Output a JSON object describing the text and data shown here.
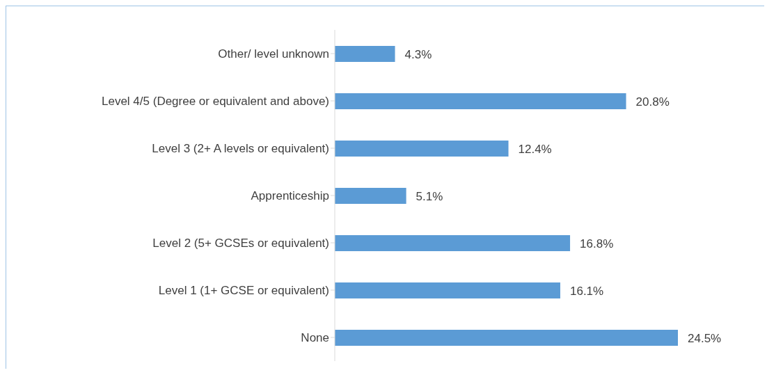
{
  "chart_data": {
    "type": "bar",
    "orientation": "horizontal",
    "categories": [
      "Other/ level unknown",
      "Level 4/5 (Degree or equivalent and above)",
      "Level 3 (2+ A levels or equivalent)",
      "Apprenticeship",
      "Level 2 (5+ GCSEs or equivalent)",
      "Level 1 (1+ GCSE or equivalent)",
      "None"
    ],
    "values": [
      4.3,
      20.8,
      12.4,
      5.1,
      16.8,
      16.1,
      24.5
    ],
    "value_labels": [
      "4.3%",
      "20.8%",
      "12.4%",
      "5.1%",
      "16.8%",
      "16.1%",
      "24.5%"
    ],
    "color": "#5b9bd5",
    "grid": false,
    "legend": false
  }
}
